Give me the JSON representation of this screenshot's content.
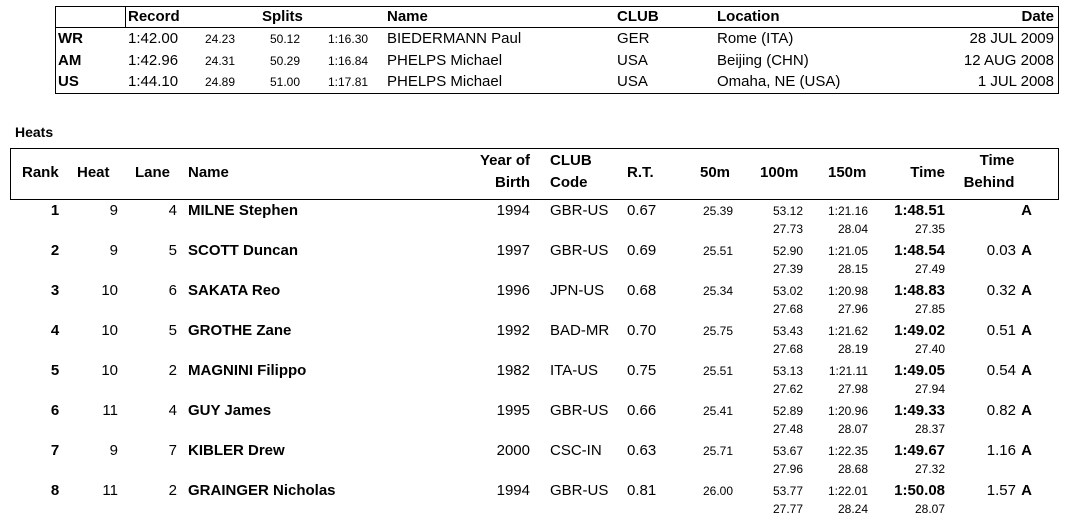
{
  "records": {
    "header": [
      "Record",
      "Splits",
      "Name",
      "CLUB",
      "Location",
      "Date"
    ],
    "rows": [
      {
        "code": "WR",
        "time": "1:42.00",
        "splits": [
          "24.23",
          "50.12",
          "1:16.30"
        ],
        "name": "BIEDERMANN Paul",
        "club": "GER",
        "location": "Rome (ITA)",
        "date": "28 JUL 2009"
      },
      {
        "code": "AM",
        "time": "1:42.96",
        "splits": [
          "24.31",
          "50.29",
          "1:16.84"
        ],
        "name": "PHELPS Michael",
        "club": "USA",
        "location": "Beijing (CHN)",
        "date": "12 AUG 2008"
      },
      {
        "code": "US",
        "time": "1:44.10",
        "splits": [
          "24.89",
          "51.00",
          "1:17.81"
        ],
        "name": "PHELPS Michael",
        "club": "USA",
        "location": "Omaha, NE (USA)",
        "date": "1 JUL 2008"
      }
    ]
  },
  "heats": {
    "title": "Heats",
    "header": {
      "rank": "Rank",
      "heat": "Heat",
      "lane": "Lane",
      "name": "Name",
      "yob": [
        "Year of",
        "Birth"
      ],
      "club": [
        "CLUB",
        "Code"
      ],
      "rt": "R.T.",
      "s50": "50m",
      "s100": "100m",
      "s150": "150m",
      "time": "Time",
      "behind": [
        "Time",
        "Behind"
      ]
    },
    "rows": [
      {
        "rank": "1",
        "heat": "9",
        "lane": "4",
        "name": "MILNE Stephen",
        "yob": "1994",
        "club": "GBR-US",
        "rt": "0.67",
        "s50": "25.39",
        "s100": "53.12",
        "s150": "1:21.16",
        "time": "1:48.51",
        "qual": "A",
        "sub100": "27.73",
        "sub150": "28.04",
        "subtime": "27.35"
      },
      {
        "rank": "2",
        "heat": "9",
        "lane": "5",
        "name": "SCOTT Duncan",
        "yob": "1997",
        "club": "GBR-US",
        "rt": "0.69",
        "s50": "25.51",
        "s100": "52.90",
        "s150": "1:21.05",
        "time": "1:48.54",
        "behind": "0.03",
        "qual": "A",
        "sub100": "27.39",
        "sub150": "28.15",
        "subtime": "27.49"
      },
      {
        "rank": "3",
        "heat": "10",
        "lane": "6",
        "name": "SAKATA Reo",
        "yob": "1996",
        "club": "JPN-US",
        "rt": "0.68",
        "s50": "25.34",
        "s100": "53.02",
        "s150": "1:20.98",
        "time": "1:48.83",
        "behind": "0.32",
        "qual": "A",
        "sub100": "27.68",
        "sub150": "27.96",
        "subtime": "27.85"
      },
      {
        "rank": "4",
        "heat": "10",
        "lane": "5",
        "name": "GROTHE Zane",
        "yob": "1992",
        "club": "BAD-MR",
        "rt": "0.70",
        "s50": "25.75",
        "s100": "53.43",
        "s150": "1:21.62",
        "time": "1:49.02",
        "behind": "0.51",
        "qual": "A",
        "sub100": "27.68",
        "sub150": "28.19",
        "subtime": "27.40"
      },
      {
        "rank": "5",
        "heat": "10",
        "lane": "2",
        "name": "MAGNINI Filippo",
        "yob": "1982",
        "club": "ITA-US",
        "rt": "0.75",
        "s50": "25.51",
        "s100": "53.13",
        "s150": "1:21.11",
        "time": "1:49.05",
        "behind": "0.54",
        "qual": "A",
        "sub100": "27.62",
        "sub150": "27.98",
        "subtime": "27.94"
      },
      {
        "rank": "6",
        "heat": "11",
        "lane": "4",
        "name": "GUY James",
        "yob": "1995",
        "club": "GBR-US",
        "rt": "0.66",
        "s50": "25.41",
        "s100": "52.89",
        "s150": "1:20.96",
        "time": "1:49.33",
        "behind": "0.82",
        "qual": "A",
        "sub100": "27.48",
        "sub150": "28.07",
        "subtime": "28.37"
      },
      {
        "rank": "7",
        "heat": "9",
        "lane": "7",
        "name": "KIBLER Drew",
        "yob": "2000",
        "club": "CSC-IN",
        "rt": "0.63",
        "s50": "25.71",
        "s100": "53.67",
        "s150": "1:22.35",
        "time": "1:49.67",
        "behind": "1.16",
        "qual": "A",
        "sub100": "27.96",
        "sub150": "28.68",
        "subtime": "27.32"
      },
      {
        "rank": "8",
        "heat": "11",
        "lane": "2",
        "name": "GRAINGER Nicholas",
        "yob": "1994",
        "club": "GBR-US",
        "rt": "0.81",
        "s50": "26.00",
        "s100": "53.77",
        "s150": "1:22.01",
        "time": "1:50.08",
        "behind": "1.57",
        "qual": "A",
        "sub100": "27.77",
        "sub150": "28.24",
        "subtime": "28.07"
      }
    ]
  }
}
